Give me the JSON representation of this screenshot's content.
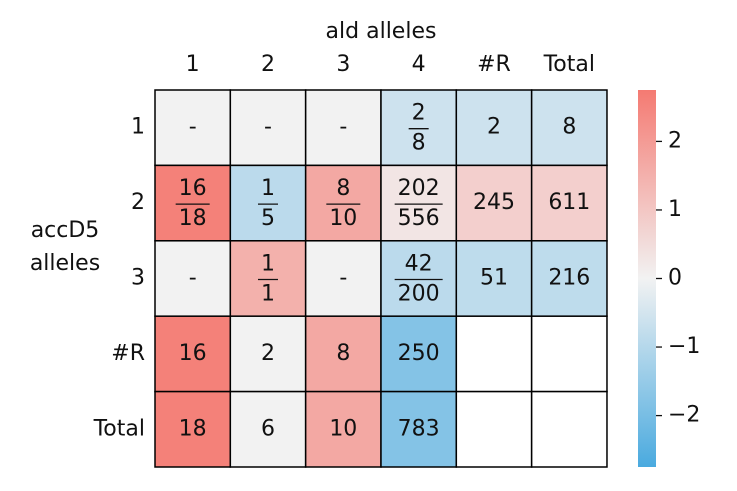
{
  "chart_data": {
    "type": "heatmap",
    "title": "ald alleles",
    "y_label": [
      "accD5",
      "alleles"
    ],
    "columns": [
      "1",
      "2",
      "3",
      "4",
      "#R",
      "Total"
    ],
    "rows": [
      "1",
      "2",
      "3",
      "#R",
      "Total"
    ],
    "values": [
      [
        0,
        0,
        0,
        -0.6,
        -0.6,
        -0.6
      ],
      [
        2.6,
        -0.9,
        1.7,
        0.3,
        0.8,
        0.8
      ],
      [
        0,
        1.5,
        0,
        -0.9,
        -0.85,
        -0.85
      ],
      [
        2.6,
        0,
        1.7,
        -1.8,
        null,
        null
      ],
      [
        2.6,
        0,
        1.7,
        -1.8,
        null,
        null
      ]
    ],
    "cell_texts": [
      [
        "-",
        "-",
        "-",
        {
          "numerator": "2",
          "denominator": "8"
        },
        "2",
        "8"
      ],
      [
        {
          "numerator": "16",
          "denominator": "18"
        },
        {
          "numerator": "1",
          "denominator": "5"
        },
        {
          "numerator": "8",
          "denominator": "10"
        },
        {
          "numerator": "202",
          "denominator": "556"
        },
        "245",
        "611"
      ],
      [
        "-",
        {
          "numerator": "1",
          "denominator": "1"
        },
        "-",
        {
          "numerator": "42",
          "denominator": "200"
        },
        "51",
        "216"
      ],
      [
        "16",
        "2",
        "8",
        "250",
        null,
        null
      ],
      [
        "18",
        "6",
        "10",
        "783",
        null,
        null
      ]
    ],
    "clim": [
      -2.75,
      2.75
    ],
    "colormap": [
      "#4aaadf",
      "#f2f2f2",
      "#f47a72"
    ],
    "colorbar_ticks": [
      {
        "value": -2,
        "label": "−2"
      },
      {
        "value": -1,
        "label": "−1"
      },
      0,
      1,
      2
    ]
  }
}
